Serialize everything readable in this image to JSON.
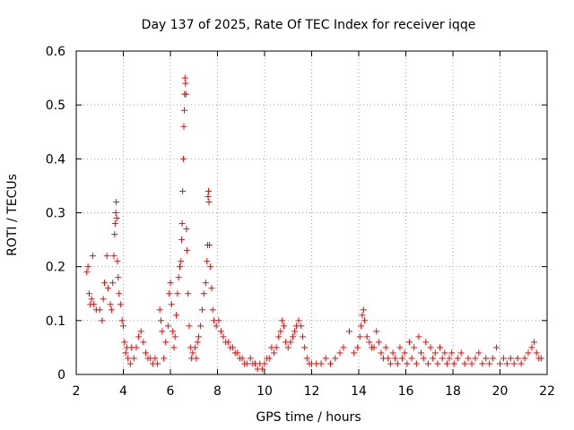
{
  "chart_data": {
    "type": "scatter",
    "title": "Day 137 of 2025, Rate Of TEC Index for receiver iqqe",
    "xlabel": "GPS time / hours",
    "ylabel": "ROTI / TECUs",
    "xlim": [
      2,
      22
    ],
    "ylim": [
      0,
      0.6
    ],
    "x_ticks": [
      "2",
      "4",
      "6",
      "8",
      "10",
      "12",
      "14",
      "16",
      "18",
      "20",
      "22"
    ],
    "y_ticks": [
      "0",
      "0.1",
      "0.2",
      "0.3",
      "0.4",
      "0.5",
      "0.6"
    ],
    "grid": true,
    "marker": "+",
    "color": "#ff0000",
    "series": [
      {
        "name": "ROTI",
        "points": [
          [
            2.45,
            0.19
          ],
          [
            2.5,
            0.2
          ],
          [
            2.55,
            0.15
          ],
          [
            2.6,
            0.13
          ],
          [
            2.65,
            0.14
          ],
          [
            2.7,
            0.22
          ],
          [
            2.75,
            0.13
          ],
          [
            2.85,
            0.12
          ],
          [
            3.0,
            0.12
          ],
          [
            3.1,
            0.1
          ],
          [
            3.15,
            0.14
          ],
          [
            3.2,
            0.17
          ],
          [
            3.3,
            0.22
          ],
          [
            3.35,
            0.16
          ],
          [
            3.45,
            0.13
          ],
          [
            3.5,
            0.12
          ],
          [
            3.55,
            0.17
          ],
          [
            3.6,
            0.22
          ],
          [
            3.63,
            0.26
          ],
          [
            3.65,
            0.28
          ],
          [
            3.68,
            0.3
          ],
          [
            3.7,
            0.32
          ],
          [
            3.72,
            0.29
          ],
          [
            3.75,
            0.21
          ],
          [
            3.78,
            0.18
          ],
          [
            3.82,
            0.15
          ],
          [
            3.88,
            0.13
          ],
          [
            3.95,
            0.1
          ],
          [
            4.0,
            0.09
          ],
          [
            4.05,
            0.06
          ],
          [
            4.1,
            0.04
          ],
          [
            4.15,
            0.05
          ],
          [
            4.2,
            0.03
          ],
          [
            4.3,
            0.02
          ],
          [
            4.35,
            0.05
          ],
          [
            4.45,
            0.03
          ],
          [
            4.55,
            0.05
          ],
          [
            4.65,
            0.07
          ],
          [
            4.75,
            0.08
          ],
          [
            4.85,
            0.06
          ],
          [
            4.95,
            0.04
          ],
          [
            5.05,
            0.03
          ],
          [
            5.15,
            0.03
          ],
          [
            5.25,
            0.02
          ],
          [
            5.35,
            0.03
          ],
          [
            5.45,
            0.02
          ],
          [
            5.55,
            0.12
          ],
          [
            5.6,
            0.1
          ],
          [
            5.65,
            0.08
          ],
          [
            5.72,
            0.03
          ],
          [
            5.8,
            0.06
          ],
          [
            5.9,
            0.09
          ],
          [
            5.95,
            0.15
          ],
          [
            6.0,
            0.17
          ],
          [
            6.05,
            0.13
          ],
          [
            6.1,
            0.08
          ],
          [
            6.15,
            0.05
          ],
          [
            6.2,
            0.07
          ],
          [
            6.25,
            0.11
          ],
          [
            6.3,
            0.15
          ],
          [
            6.35,
            0.18
          ],
          [
            6.4,
            0.2
          ],
          [
            6.45,
            0.21
          ],
          [
            6.48,
            0.25
          ],
          [
            6.5,
            0.28
          ],
          [
            6.52,
            0.34
          ],
          [
            6.55,
            0.4
          ],
          [
            6.57,
            0.46
          ],
          [
            6.59,
            0.49
          ],
          [
            6.6,
            0.52
          ],
          [
            6.62,
            0.55
          ],
          [
            6.64,
            0.54
          ],
          [
            6.66,
            0.52
          ],
          [
            6.68,
            0.27
          ],
          [
            6.7,
            0.23
          ],
          [
            6.75,
            0.15
          ],
          [
            6.8,
            0.09
          ],
          [
            6.85,
            0.05
          ],
          [
            6.9,
            0.03
          ],
          [
            6.95,
            0.04
          ],
          [
            7.05,
            0.05
          ],
          [
            7.1,
            0.03
          ],
          [
            7.15,
            0.06
          ],
          [
            7.2,
            0.07
          ],
          [
            7.28,
            0.09
          ],
          [
            7.35,
            0.12
          ],
          [
            7.42,
            0.15
          ],
          [
            7.5,
            0.17
          ],
          [
            7.55,
            0.21
          ],
          [
            7.58,
            0.24
          ],
          [
            7.6,
            0.33
          ],
          [
            7.62,
            0.34
          ],
          [
            7.64,
            0.32
          ],
          [
            7.66,
            0.24
          ],
          [
            7.7,
            0.2
          ],
          [
            7.75,
            0.16
          ],
          [
            7.8,
            0.12
          ],
          [
            7.85,
            0.1
          ],
          [
            7.95,
            0.09
          ],
          [
            8.05,
            0.1
          ],
          [
            8.15,
            0.08
          ],
          [
            8.25,
            0.07
          ],
          [
            8.35,
            0.06
          ],
          [
            8.45,
            0.06
          ],
          [
            8.55,
            0.05
          ],
          [
            8.65,
            0.05
          ],
          [
            8.75,
            0.04
          ],
          [
            8.85,
            0.04
          ],
          [
            8.95,
            0.03
          ],
          [
            9.05,
            0.03
          ],
          [
            9.15,
            0.02
          ],
          [
            9.25,
            0.02
          ],
          [
            9.4,
            0.03
          ],
          [
            9.5,
            0.02
          ],
          [
            9.6,
            0.02
          ],
          [
            9.7,
            0.01
          ],
          [
            9.8,
            0.02
          ],
          [
            9.9,
            0.01
          ],
          [
            10.0,
            0.02
          ],
          [
            10.1,
            0.03
          ],
          [
            10.2,
            0.03
          ],
          [
            10.3,
            0.05
          ],
          [
            10.4,
            0.04
          ],
          [
            10.5,
            0.05
          ],
          [
            10.6,
            0.07
          ],
          [
            10.68,
            0.08
          ],
          [
            10.75,
            0.1
          ],
          [
            10.82,
            0.09
          ],
          [
            10.9,
            0.06
          ],
          [
            11.0,
            0.05
          ],
          [
            11.1,
            0.06
          ],
          [
            11.2,
            0.07
          ],
          [
            11.28,
            0.08
          ],
          [
            11.35,
            0.09
          ],
          [
            11.45,
            0.1
          ],
          [
            11.55,
            0.09
          ],
          [
            11.62,
            0.07
          ],
          [
            11.7,
            0.05
          ],
          [
            11.8,
            0.03
          ],
          [
            11.9,
            0.02
          ],
          [
            12.0,
            0.02
          ],
          [
            12.2,
            0.02
          ],
          [
            12.4,
            0.02
          ],
          [
            12.6,
            0.03
          ],
          [
            12.8,
            0.02
          ],
          [
            13.0,
            0.03
          ],
          [
            13.2,
            0.04
          ],
          [
            13.35,
            0.05
          ],
          [
            13.6,
            0.08
          ],
          [
            13.8,
            0.04
          ],
          [
            13.95,
            0.05
          ],
          [
            14.05,
            0.07
          ],
          [
            14.1,
            0.09
          ],
          [
            14.15,
            0.11
          ],
          [
            14.2,
            0.12
          ],
          [
            14.25,
            0.1
          ],
          [
            14.35,
            0.07
          ],
          [
            14.45,
            0.06
          ],
          [
            14.55,
            0.05
          ],
          [
            14.65,
            0.05
          ],
          [
            14.75,
            0.08
          ],
          [
            14.85,
            0.06
          ],
          [
            14.95,
            0.04
          ],
          [
            15.05,
            0.03
          ],
          [
            15.15,
            0.05
          ],
          [
            15.25,
            0.03
          ],
          [
            15.35,
            0.02
          ],
          [
            15.45,
            0.04
          ],
          [
            15.55,
            0.03
          ],
          [
            15.65,
            0.02
          ],
          [
            15.75,
            0.05
          ],
          [
            15.85,
            0.03
          ],
          [
            15.95,
            0.04
          ],
          [
            16.05,
            0.02
          ],
          [
            16.15,
            0.06
          ],
          [
            16.25,
            0.03
          ],
          [
            16.35,
            0.05
          ],
          [
            16.45,
            0.02
          ],
          [
            16.55,
            0.07
          ],
          [
            16.65,
            0.04
          ],
          [
            16.75,
            0.03
          ],
          [
            16.85,
            0.06
          ],
          [
            16.95,
            0.02
          ],
          [
            17.05,
            0.05
          ],
          [
            17.15,
            0.03
          ],
          [
            17.25,
            0.04
          ],
          [
            17.35,
            0.02
          ],
          [
            17.45,
            0.05
          ],
          [
            17.55,
            0.03
          ],
          [
            17.65,
            0.04
          ],
          [
            17.75,
            0.02
          ],
          [
            17.85,
            0.03
          ],
          [
            17.95,
            0.04
          ],
          [
            18.05,
            0.02
          ],
          [
            18.2,
            0.03
          ],
          [
            18.35,
            0.04
          ],
          [
            18.5,
            0.02
          ],
          [
            18.65,
            0.03
          ],
          [
            18.8,
            0.02
          ],
          [
            18.95,
            0.03
          ],
          [
            19.1,
            0.04
          ],
          [
            19.25,
            0.02
          ],
          [
            19.4,
            0.03
          ],
          [
            19.55,
            0.02
          ],
          [
            19.7,
            0.03
          ],
          [
            19.85,
            0.05
          ],
          [
            20.0,
            0.02
          ],
          [
            20.15,
            0.03
          ],
          [
            20.3,
            0.02
          ],
          [
            20.45,
            0.03
          ],
          [
            20.6,
            0.02
          ],
          [
            20.75,
            0.03
          ],
          [
            20.9,
            0.02
          ],
          [
            21.05,
            0.03
          ],
          [
            21.2,
            0.04
          ],
          [
            21.35,
            0.05
          ],
          [
            21.45,
            0.06
          ],
          [
            21.55,
            0.04
          ],
          [
            21.65,
            0.03
          ],
          [
            21.75,
            0.03
          ]
        ]
      }
    ]
  }
}
